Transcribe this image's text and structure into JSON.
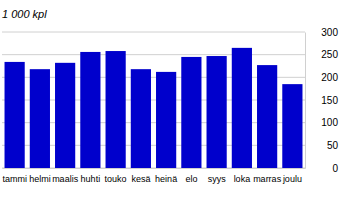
{
  "chart_data": {
    "type": "bar",
    "title": "1 000 kpl",
    "categories": [
      "tammi",
      "helmi",
      "maalis",
      "huhti",
      "touko",
      "kesä",
      "heinä",
      "elo",
      "syys",
      "loka",
      "marras",
      "joulu"
    ],
    "values": [
      234,
      218,
      232,
      256,
      258,
      218,
      212,
      245,
      247,
      265,
      227,
      185
    ],
    "color": "#0000cc",
    "ylim": [
      0,
      300
    ],
    "yticks": [
      0,
      50,
      100,
      150,
      200,
      250,
      300
    ],
    "grid": true
  }
}
